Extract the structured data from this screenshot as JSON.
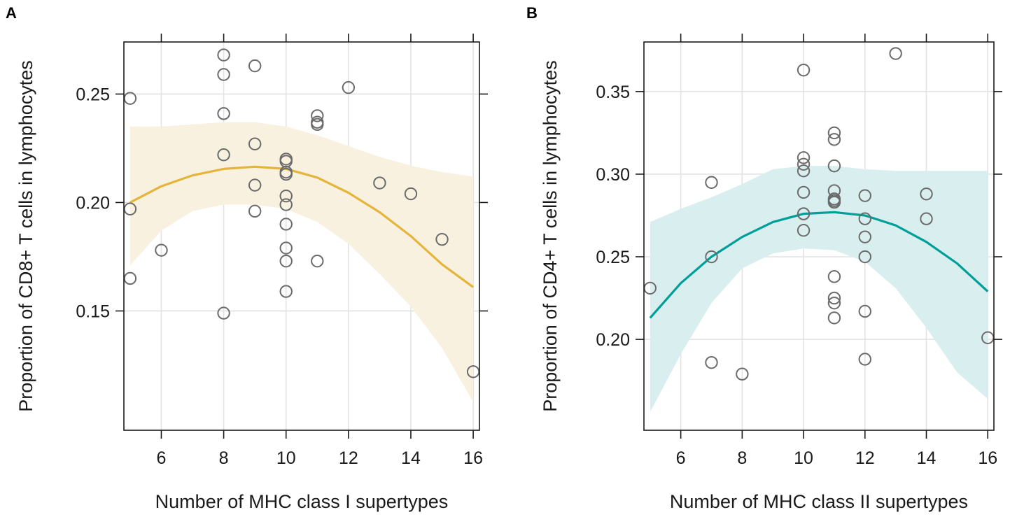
{
  "chart_data": [
    {
      "panel": "A",
      "type": "scatter",
      "title": "",
      "xlabel": "Number of MHC class I supertypes",
      "ylabel": "Proportion of CD8+ T cells in lymphocytes",
      "xlim": [
        4.8,
        16.2
      ],
      "ylim": [
        0.095,
        0.274
      ],
      "xticks": [
        6,
        8,
        10,
        12,
        14,
        16
      ],
      "xtick_labels": [
        "6",
        "8",
        "10",
        "12",
        "14",
        "16"
      ],
      "yticks": [
        0.15,
        0.2,
        0.25
      ],
      "ytick_labels": [
        "0.15",
        "0.20",
        "0.25"
      ],
      "grid": true,
      "points": [
        [
          5,
          0.248
        ],
        [
          5,
          0.197
        ],
        [
          5,
          0.165
        ],
        [
          6,
          0.178
        ],
        [
          8,
          0.268
        ],
        [
          8,
          0.259
        ],
        [
          8,
          0.241
        ],
        [
          8,
          0.222
        ],
        [
          8,
          0.149
        ],
        [
          9,
          0.263
        ],
        [
          9,
          0.227
        ],
        [
          9,
          0.208
        ],
        [
          9,
          0.196
        ],
        [
          10,
          0.22
        ],
        [
          10,
          0.219
        ],
        [
          10,
          0.214
        ],
        [
          10,
          0.213
        ],
        [
          10,
          0.203
        ],
        [
          10,
          0.199
        ],
        [
          10,
          0.19
        ],
        [
          10,
          0.179
        ],
        [
          10,
          0.173
        ],
        [
          10,
          0.159
        ],
        [
          11,
          0.24
        ],
        [
          11,
          0.237
        ],
        [
          11,
          0.236
        ],
        [
          11,
          0.173
        ],
        [
          12,
          0.253
        ],
        [
          13,
          0.209
        ],
        [
          14,
          0.204
        ],
        [
          15,
          0.183
        ],
        [
          16,
          0.122
        ]
      ],
      "fit": {
        "color": "#e5b43a",
        "band_color": "#f9f1e0",
        "x": [
          5,
          6,
          7,
          8,
          9,
          10,
          11,
          12,
          13,
          14,
          15,
          16
        ],
        "y": [
          0.2,
          0.2075,
          0.2125,
          0.2155,
          0.2165,
          0.2155,
          0.2115,
          0.2045,
          0.1955,
          0.1845,
          0.1715,
          0.161
        ],
        "lower": [
          0.171,
          0.187,
          0.196,
          0.199,
          0.199,
          0.197,
          0.191,
          0.181,
          0.167,
          0.152,
          0.133,
          0.108
        ],
        "upper": [
          0.235,
          0.235,
          0.236,
          0.237,
          0.237,
          0.235,
          0.231,
          0.226,
          0.221,
          0.217,
          0.214,
          0.212
        ]
      }
    },
    {
      "panel": "B",
      "type": "scatter",
      "title": "",
      "xlabel": "Number of MHC class II supertypes",
      "ylabel": "Proportion of CD4+ T cells in lymphocytes",
      "xlim": [
        4.8,
        16.2
      ],
      "ylim": [
        0.145,
        0.38
      ],
      "xticks": [
        6,
        8,
        10,
        12,
        14,
        16
      ],
      "xtick_labels": [
        "6",
        "8",
        "10",
        "12",
        "14",
        "16"
      ],
      "yticks": [
        0.2,
        0.25,
        0.3,
        0.35
      ],
      "ytick_labels": [
        "0.20",
        "0.25",
        "0.30",
        "0.35"
      ],
      "grid": true,
      "points": [
        [
          5,
          0.231
        ],
        [
          7,
          0.295
        ],
        [
          7,
          0.25
        ],
        [
          7,
          0.186
        ],
        [
          8,
          0.179
        ],
        [
          10,
          0.363
        ],
        [
          10,
          0.31
        ],
        [
          10,
          0.306
        ],
        [
          10,
          0.302
        ],
        [
          10,
          0.289
        ],
        [
          10,
          0.276
        ],
        [
          10,
          0.276
        ],
        [
          10,
          0.266
        ],
        [
          11,
          0.325
        ],
        [
          11,
          0.321
        ],
        [
          11,
          0.305
        ],
        [
          11,
          0.29
        ],
        [
          11,
          0.285
        ],
        [
          11,
          0.284
        ],
        [
          11,
          0.283
        ],
        [
          11,
          0.238
        ],
        [
          11,
          0.225
        ],
        [
          11,
          0.222
        ],
        [
          11,
          0.213
        ],
        [
          12,
          0.287
        ],
        [
          12,
          0.273
        ],
        [
          12,
          0.262
        ],
        [
          12,
          0.25
        ],
        [
          12,
          0.217
        ],
        [
          12,
          0.188
        ],
        [
          13,
          0.373
        ],
        [
          14,
          0.288
        ],
        [
          14,
          0.273
        ],
        [
          16,
          0.201
        ]
      ],
      "fit": {
        "color": "#009e99",
        "band_color": "#d9eeee",
        "x": [
          5,
          6,
          7,
          8,
          9,
          10,
          11,
          12,
          13,
          14,
          15,
          16
        ],
        "y": [
          0.213,
          0.234,
          0.25,
          0.262,
          0.271,
          0.276,
          0.277,
          0.275,
          0.269,
          0.259,
          0.246,
          0.229
        ],
        "lower": [
          0.156,
          0.191,
          0.222,
          0.243,
          0.252,
          0.255,
          0.254,
          0.247,
          0.231,
          0.207,
          0.18,
          0.164
        ],
        "upper": [
          0.271,
          0.279,
          0.286,
          0.294,
          0.303,
          0.305,
          0.305,
          0.303,
          0.302,
          0.302,
          0.302,
          0.302
        ]
      }
    }
  ]
}
